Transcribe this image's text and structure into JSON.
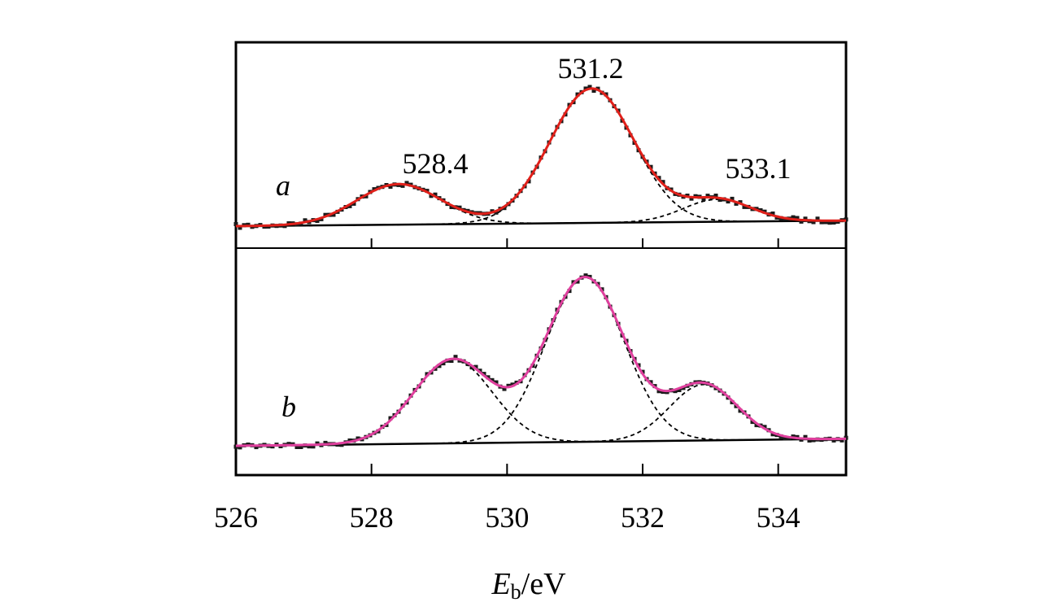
{
  "chart_data": {
    "type": "line",
    "xlabel_main": "E",
    "xlabel_sub": "b",
    "xlabel_unit": "/eV",
    "xlim": [
      526,
      535
    ],
    "xticks": [
      526,
      528,
      530,
      532,
      534
    ],
    "y_ticks_shown": false,
    "grid": false,
    "panels": [
      {
        "label": "a",
        "fit_color": "#e0201a",
        "peak_labels": [
          "528.4",
          "531.2",
          "533.1"
        ],
        "background": {
          "x": [
            526,
            535
          ],
          "y": [
            0.0,
            0.04
          ]
        },
        "components": [
          {
            "center": 528.4,
            "height": 0.29,
            "width": 0.62
          },
          {
            "center": 531.25,
            "height": 0.96,
            "width": 0.62
          },
          {
            "center": 533.1,
            "height": 0.16,
            "width": 0.5
          }
        ]
      },
      {
        "label": "b",
        "fit_color": "#e0409e",
        "peak_labels": [],
        "background": {
          "x": [
            526,
            535
          ],
          "y": [
            0.0,
            0.04
          ]
        },
        "components": [
          {
            "center": 529.2,
            "height": 0.48,
            "width": 0.58
          },
          {
            "center": 531.15,
            "height": 0.94,
            "width": 0.58
          },
          {
            "center": 532.9,
            "height": 0.32,
            "width": 0.5
          }
        ]
      }
    ]
  }
}
